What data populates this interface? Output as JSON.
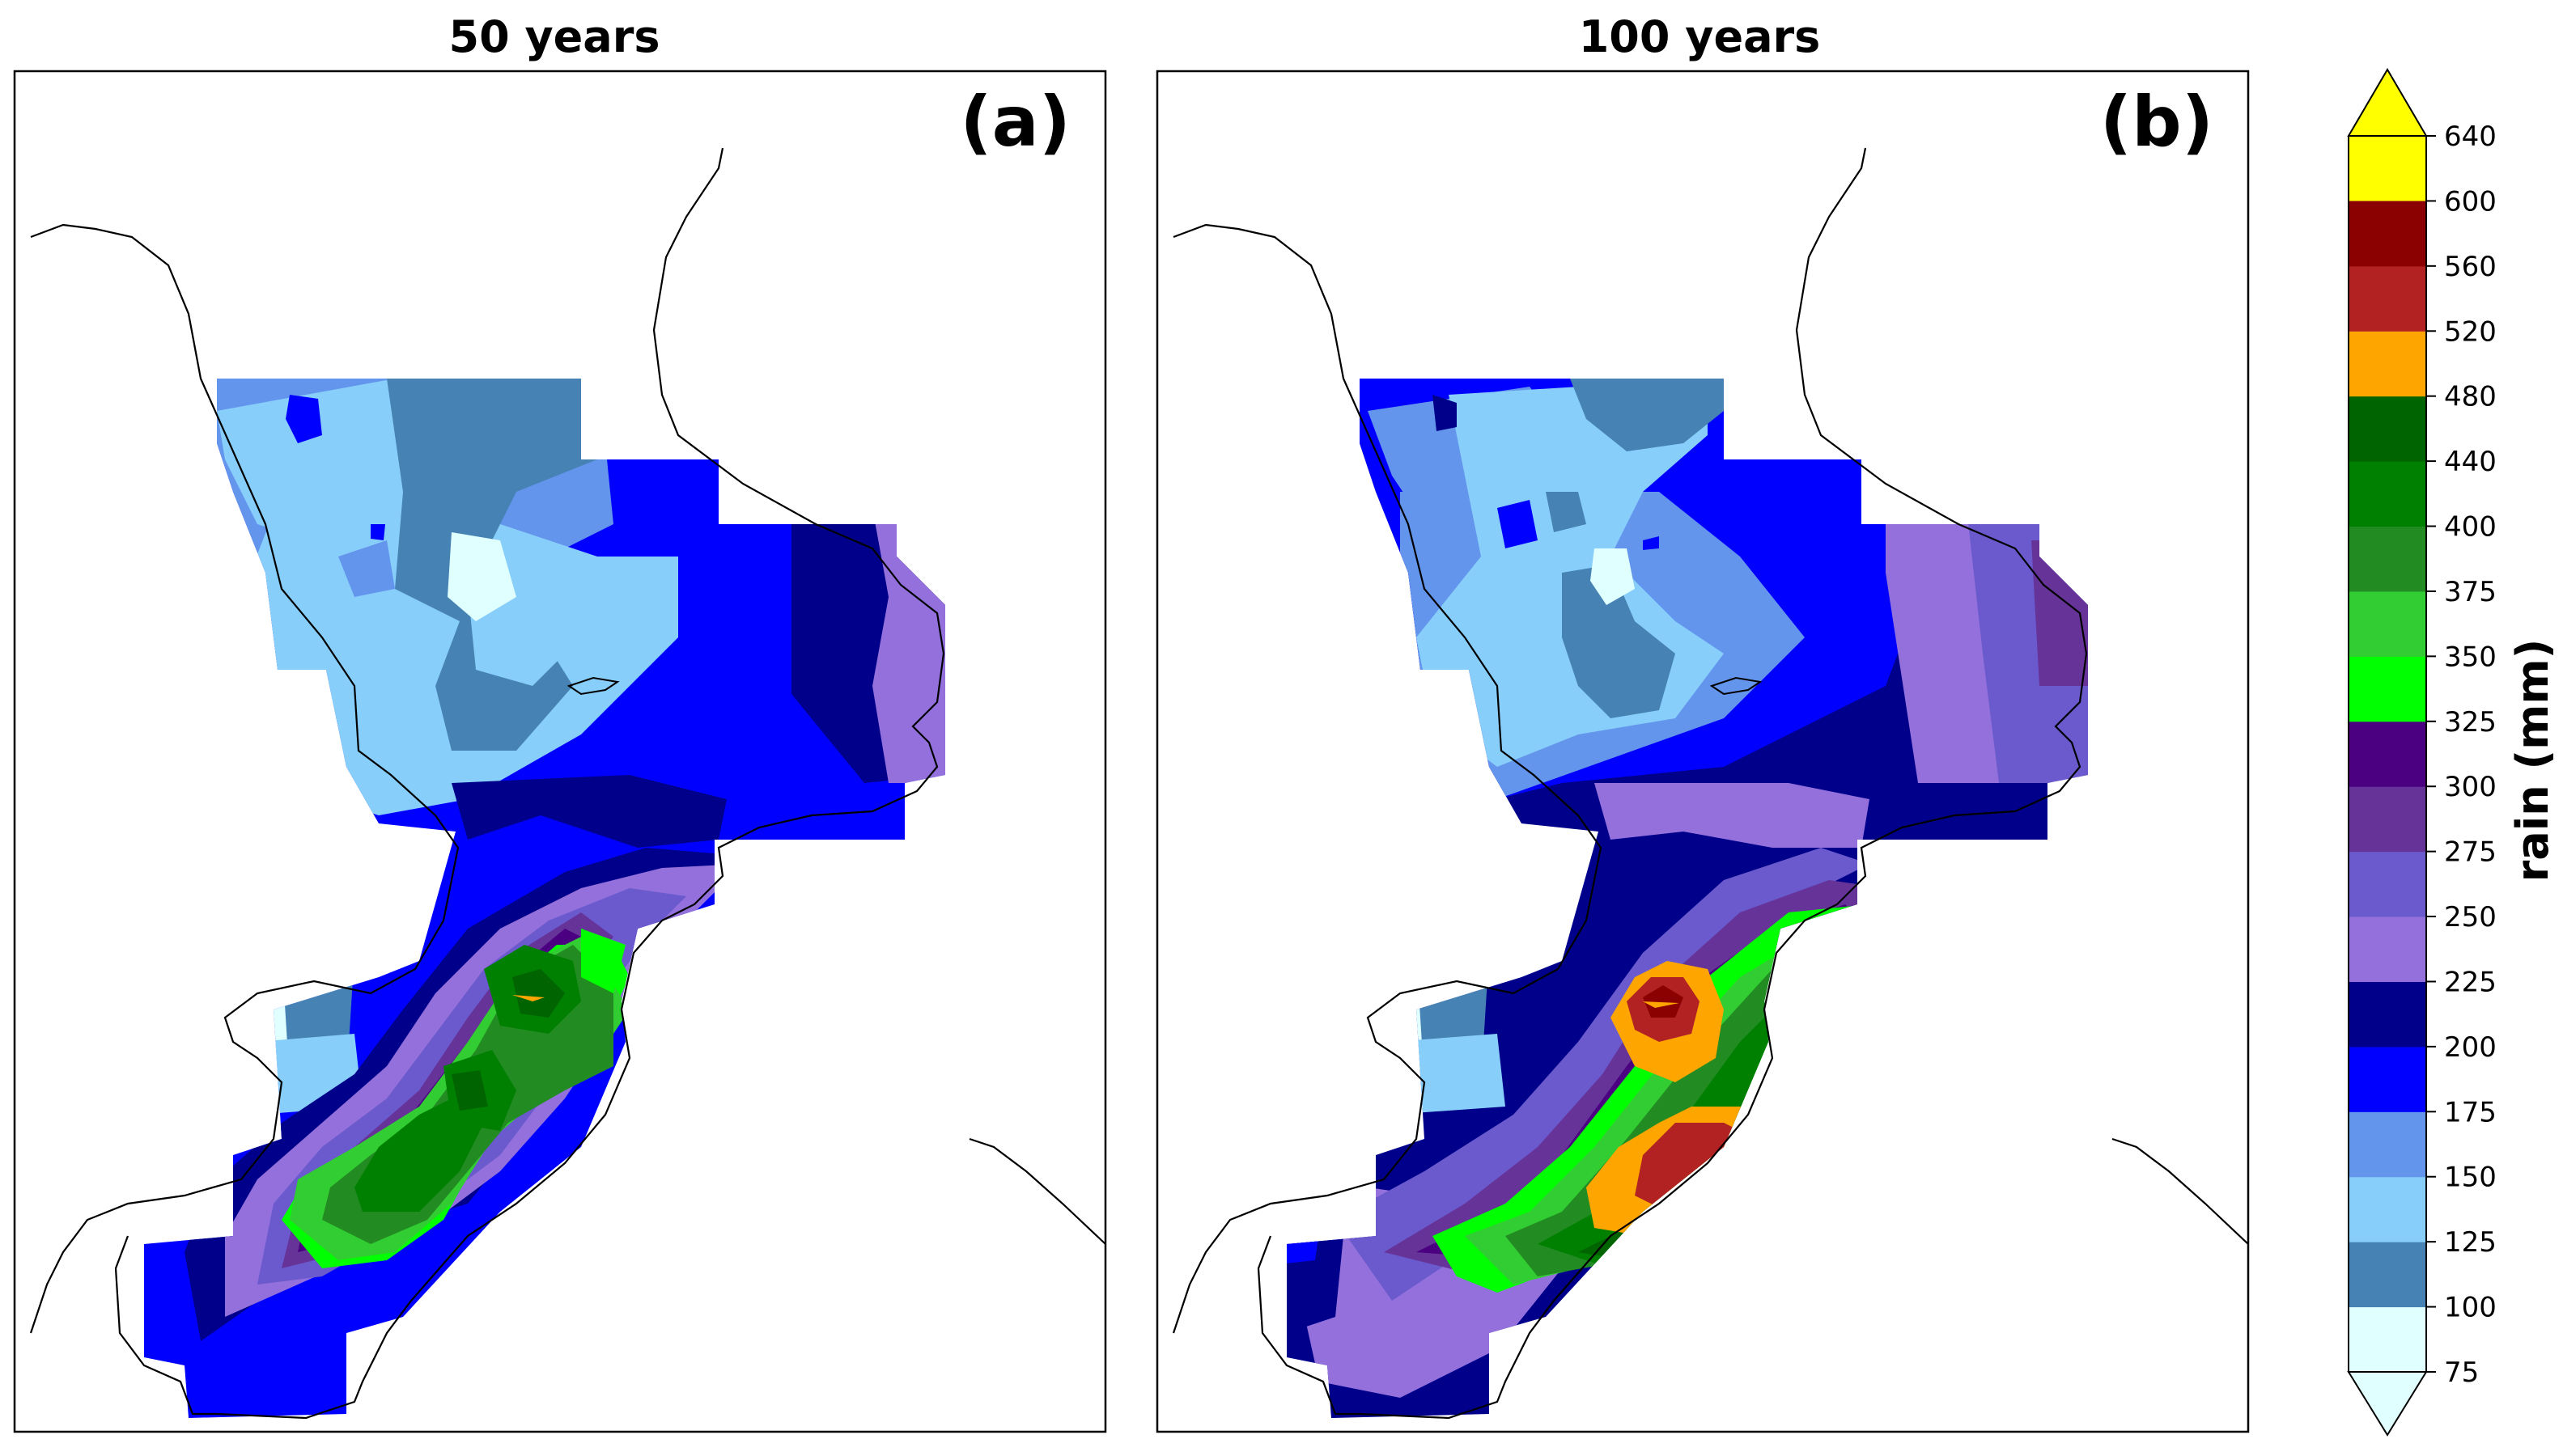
{
  "panels": [
    {
      "title": "50 years",
      "label": "(a)"
    },
    {
      "title": "100 years",
      "label": "(b)"
    }
  ],
  "colorbar": {
    "label": "rain (mm)",
    "ticks": [
      "75",
      "100",
      "125",
      "150",
      "175",
      "200",
      "225",
      "250",
      "275",
      "300",
      "325",
      "350",
      "375",
      "400",
      "440",
      "480",
      "520",
      "560",
      "600",
      "640"
    ],
    "colors": [
      "#e0ffff",
      "#4682b4",
      "#87cefa",
      "#6495ed",
      "#0000ff",
      "#00008b",
      "#9370db",
      "#6a5acd",
      "#663399",
      "#4b0082",
      "#00ff00",
      "#32cd32",
      "#228b22",
      "#008000",
      "#006400",
      "#ffa500",
      "#b22222",
      "#8b0000",
      "#ffff00"
    ]
  },
  "map_colors": {
    "c75": "#e0ffff",
    "c100": "#4682b4",
    "c125": "#87cefa",
    "c150": "#6495ed",
    "c175": "#0000ff",
    "c200": "#00008b",
    "c225": "#9370db",
    "c250": "#6a5acd",
    "c275": "#663399",
    "c300": "#4b0082",
    "c325": "#00ff00",
    "c350": "#32cd32",
    "c375": "#228b22",
    "c400": "#008000",
    "c440": "#006400",
    "c480": "#ffa500",
    "c520": "#b22222",
    "c560": "#8b0000"
  }
}
